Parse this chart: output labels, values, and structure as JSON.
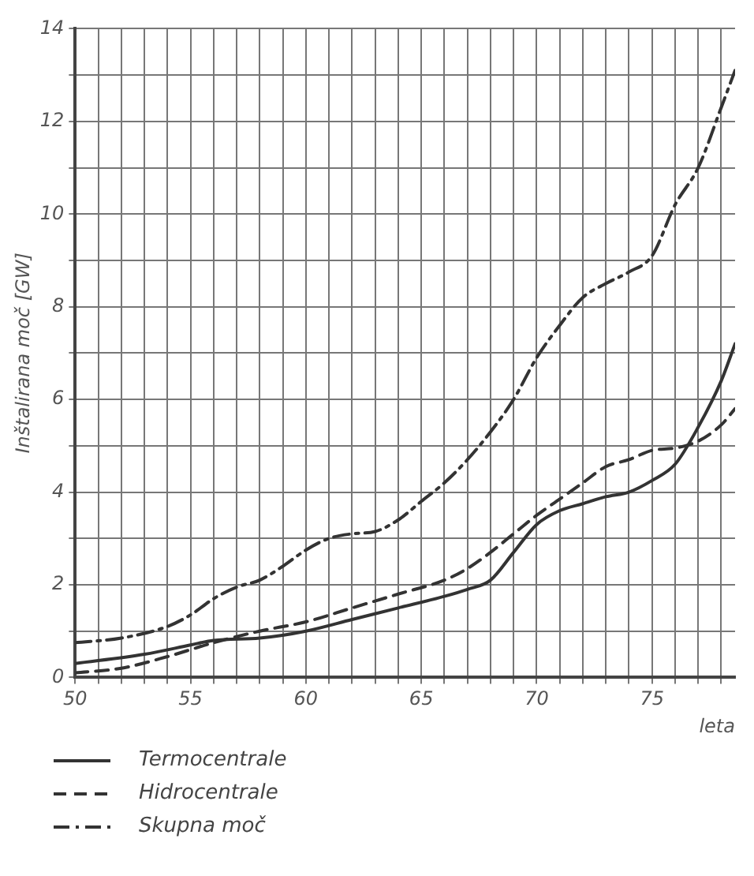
{
  "chart_data": {
    "type": "line",
    "xlabel": "leta",
    "ylabel": "Inštalirana moč [GW]",
    "xlim": [
      50,
      78.6
    ],
    "ylim": [
      0,
      14
    ],
    "xticks": [
      50,
      {
        "value": 51,
        "label": null
      },
      {
        "value": 52,
        "label": null
      },
      {
        "value": 53,
        "label": null
      },
      {
        "value": 54,
        "label": null
      },
      55,
      {
        "value": 56,
        "label": null
      },
      {
        "value": 57,
        "label": null
      },
      {
        "value": 58,
        "label": null
      },
      {
        "value": 59,
        "label": null
      },
      60,
      {
        "value": 61,
        "label": null
      },
      {
        "value": 62,
        "label": null
      },
      {
        "value": 63,
        "label": null
      },
      {
        "value": 64,
        "label": null
      },
      65,
      {
        "value": 66,
        "label": null
      },
      {
        "value": 67,
        "label": null
      },
      {
        "value": 68,
        "label": null
      },
      {
        "value": 69,
        "label": null
      },
      70,
      {
        "value": 71,
        "label": null
      },
      {
        "value": 72,
        "label": null
      },
      {
        "value": 73,
        "label": null
      },
      {
        "value": 74,
        "label": null
      },
      75,
      {
        "value": 76,
        "label": null
      },
      {
        "value": 77,
        "label": null
      },
      {
        "value": 78,
        "label": null
      }
    ],
    "yticks": [
      0,
      {
        "value": 1,
        "label": null
      },
      2,
      {
        "value": 3,
        "label": null
      },
      4,
      {
        "value": 5,
        "label": null
      },
      6,
      {
        "value": 7,
        "label": null
      },
      8,
      {
        "value": 9,
        "label": null
      },
      10,
      {
        "value": 11,
        "label": null
      },
      12,
      {
        "value": 13,
        "label": null
      },
      14
    ],
    "grid": true,
    "legend": "bottom left",
    "marker": "none",
    "series": [
      {
        "name": "Termocentrale",
        "color": "#333333",
        "line_style": "solid",
        "x": [
          50,
          53,
          55,
          56,
          58,
          60,
          62,
          64,
          66,
          67,
          68,
          69,
          70,
          71,
          72,
          73,
          74,
          75,
          76,
          77,
          78,
          78.6
        ],
        "values": [
          0.3,
          0.5,
          0.7,
          0.8,
          0.85,
          1.0,
          1.25,
          1.5,
          1.75,
          1.9,
          2.1,
          2.7,
          3.3,
          3.6,
          3.75,
          3.9,
          4.0,
          4.25,
          4.6,
          5.4,
          6.4,
          7.2
        ]
      },
      {
        "name": "Hidrocentrale",
        "color": "#333333",
        "line_style": "dashed",
        "x": [
          50,
          52,
          54,
          56,
          58,
          60,
          62,
          64,
          66,
          67,
          68,
          69,
          70,
          71,
          72,
          73,
          74,
          75,
          76,
          77,
          78,
          78.6
        ],
        "values": [
          0.1,
          0.2,
          0.45,
          0.75,
          1.0,
          1.2,
          1.5,
          1.8,
          2.1,
          2.35,
          2.7,
          3.1,
          3.5,
          3.85,
          4.2,
          4.55,
          4.7,
          4.9,
          4.95,
          5.1,
          5.45,
          5.8
        ]
      },
      {
        "name": "Skupna moč",
        "color": "#333333",
        "line_style": "dashdot",
        "x": [
          50,
          52,
          54,
          55,
          56,
          57,
          58,
          59,
          60,
          61,
          62,
          63,
          64,
          65,
          66,
          67,
          68,
          69,
          70,
          71,
          72,
          73,
          74,
          75,
          76,
          77,
          78,
          78.6
        ],
        "values": [
          0.75,
          0.85,
          1.1,
          1.35,
          1.7,
          1.95,
          2.1,
          2.4,
          2.75,
          3.0,
          3.1,
          3.15,
          3.4,
          3.8,
          4.2,
          4.7,
          5.3,
          6.0,
          6.9,
          7.6,
          8.2,
          8.5,
          8.75,
          9.1,
          10.2,
          11.0,
          12.3,
          13.1
        ]
      }
    ]
  }
}
